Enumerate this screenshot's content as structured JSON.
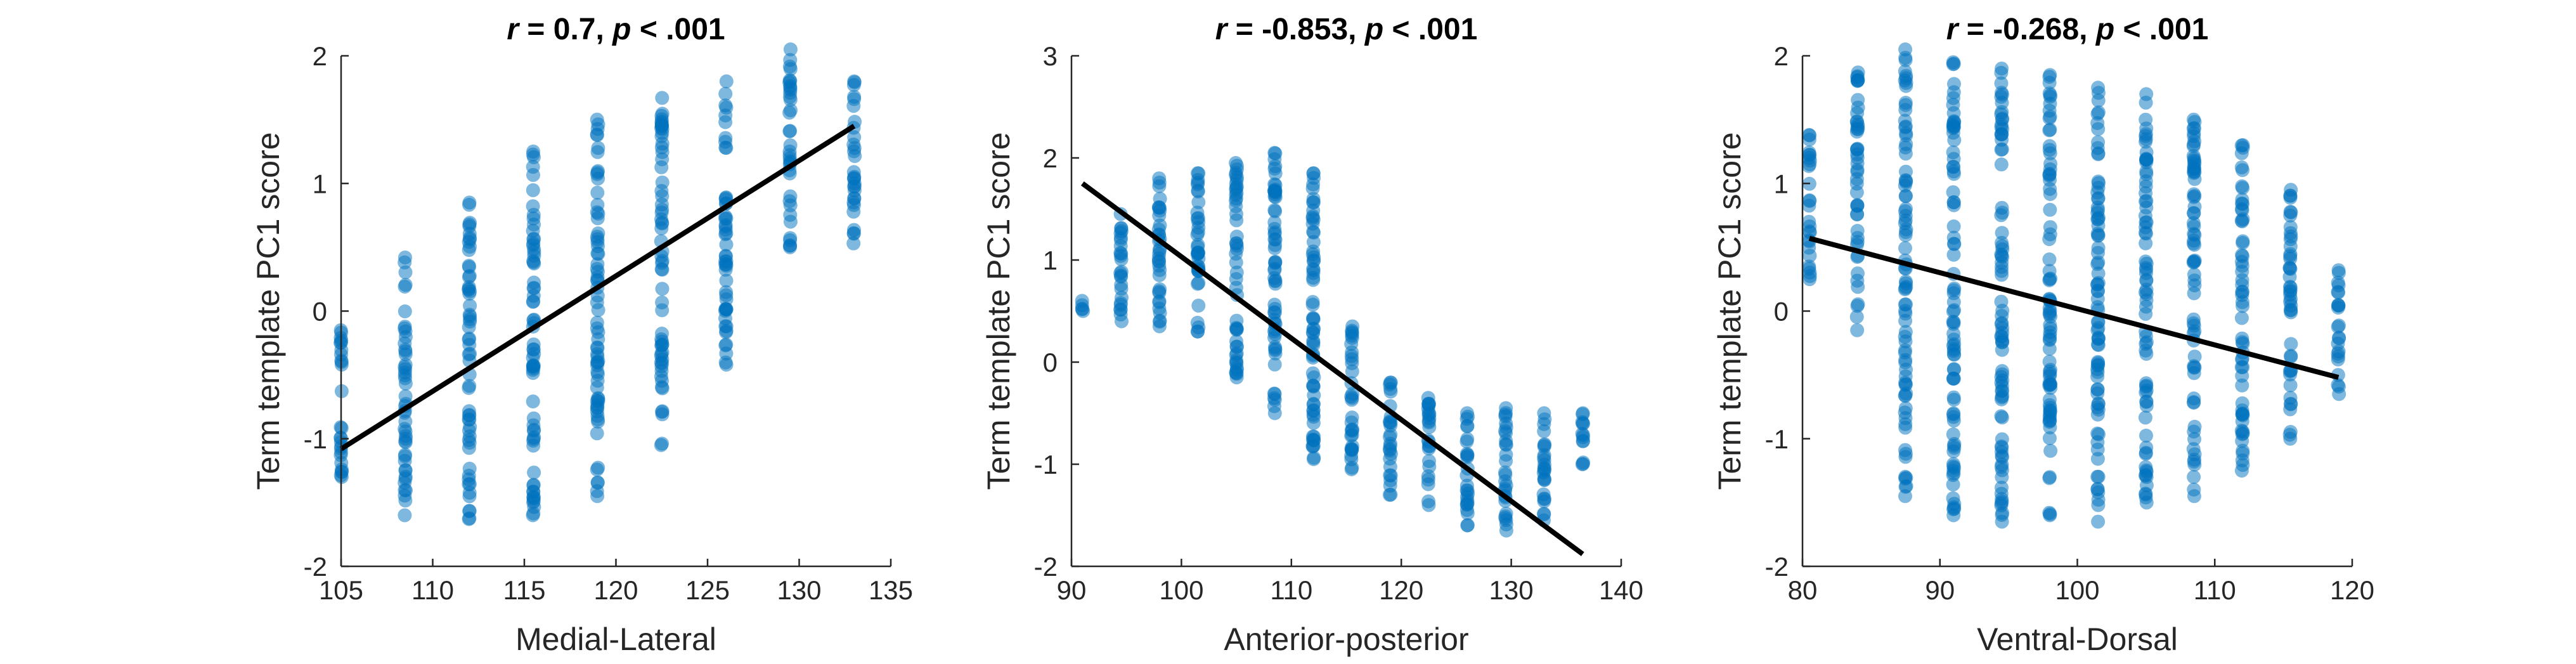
{
  "chart_data": [
    {
      "type": "scatter",
      "title_parts": [
        "r",
        " = 0.7, ",
        "p",
        " < .001"
      ],
      "xlabel": "Medial-Lateral",
      "ylabel": "Term template PC1 score",
      "xlim": [
        105,
        135
      ],
      "ylim": [
        -2,
        2
      ],
      "xticks": [
        "105",
        "110",
        "115",
        "120",
        "125",
        "130",
        "135"
      ],
      "yticks": [
        "-2",
        "-1",
        "0",
        "1",
        "2"
      ],
      "marker_color": "#0072BD",
      "grid": false,
      "fit_line": {
        "x": [
          105,
          133
        ],
        "y": [
          -1.08,
          1.45
        ]
      },
      "columns": [
        {
          "x": 105.0,
          "min": -1.3,
          "max": -0.15
        },
        {
          "x": 108.5,
          "min": -1.6,
          "max": 0.42
        },
        {
          "x": 112.0,
          "min": -1.63,
          "max": 0.85
        },
        {
          "x": 115.5,
          "min": -1.6,
          "max": 1.25
        },
        {
          "x": 119.0,
          "min": -1.45,
          "max": 1.5
        },
        {
          "x": 122.5,
          "min": -1.05,
          "max": 1.67
        },
        {
          "x": 126.0,
          "min": -0.42,
          "max": 1.8
        },
        {
          "x": 129.5,
          "min": 0.5,
          "max": 2.05
        },
        {
          "x": 133.0,
          "min": 0.53,
          "max": 1.8
        }
      ]
    },
    {
      "type": "scatter",
      "title_parts": [
        "r",
        " = -0.853, ",
        "p",
        " < .001"
      ],
      "xlabel": "Anterior-posterior",
      "ylabel": "Term template PC1 score",
      "xlim": [
        90,
        140
      ],
      "ylim": [
        -2,
        3
      ],
      "xticks": [
        "90",
        "100",
        "110",
        "120",
        "130",
        "140"
      ],
      "yticks": [
        "-2",
        "-1",
        "0",
        "1",
        "2",
        "3"
      ],
      "marker_color": "#0072BD",
      "grid": false,
      "fit_line": {
        "x": [
          91,
          136.5
        ],
        "y": [
          1.75,
          -1.88
        ]
      },
      "columns": [
        {
          "x": 91.0,
          "min": 0.5,
          "max": 0.6
        },
        {
          "x": 94.5,
          "min": 0.4,
          "max": 1.45
        },
        {
          "x": 98.0,
          "min": 0.35,
          "max": 1.8
        },
        {
          "x": 101.5,
          "min": 0.3,
          "max": 1.85
        },
        {
          "x": 105.0,
          "min": -0.15,
          "max": 1.95
        },
        {
          "x": 108.5,
          "min": -0.5,
          "max": 2.05
        },
        {
          "x": 112.0,
          "min": -0.95,
          "max": 1.85
        },
        {
          "x": 115.5,
          "min": -1.05,
          "max": 0.35
        },
        {
          "x": 119.0,
          "min": -1.3,
          "max": -0.2
        },
        {
          "x": 122.5,
          "min": -1.4,
          "max": -0.35
        },
        {
          "x": 126.0,
          "min": -1.6,
          "max": -0.5
        },
        {
          "x": 129.5,
          "min": -1.65,
          "max": -0.45
        },
        {
          "x": 133.0,
          "min": -1.55,
          "max": -0.5
        },
        {
          "x": 136.5,
          "min": -1.0,
          "max": -0.5
        }
      ]
    },
    {
      "type": "scatter",
      "title_parts": [
        "r",
        " = -0.268, ",
        "p",
        " < .001"
      ],
      "xlabel": "Ventral-Dorsal",
      "ylabel": "Term template PC1 score",
      "xlim": [
        80,
        120
      ],
      "ylim": [
        -2,
        2
      ],
      "xticks": [
        "80",
        "90",
        "100",
        "110",
        "120"
      ],
      "yticks": [
        "-2",
        "-1",
        "0",
        "1",
        "2"
      ],
      "marker_color": "#0072BD",
      "grid": false,
      "fit_line": {
        "x": [
          80.5,
          119
        ],
        "y": [
          0.57,
          -0.52
        ]
      },
      "columns": [
        {
          "x": 80.5,
          "min": 0.25,
          "max": 1.38
        },
        {
          "x": 84.0,
          "min": -0.15,
          "max": 1.87
        },
        {
          "x": 87.5,
          "min": -1.45,
          "max": 2.05
        },
        {
          "x": 91.0,
          "min": -1.6,
          "max": 1.95
        },
        {
          "x": 94.5,
          "min": -1.65,
          "max": 1.9
        },
        {
          "x": 98.0,
          "min": -1.6,
          "max": 1.85
        },
        {
          "x": 101.5,
          "min": -1.65,
          "max": 1.75
        },
        {
          "x": 105.0,
          "min": -1.5,
          "max": 1.7
        },
        {
          "x": 108.5,
          "min": -1.45,
          "max": 1.5
        },
        {
          "x": 112.0,
          "min": -1.25,
          "max": 1.3
        },
        {
          "x": 115.5,
          "min": -1.0,
          "max": 0.95
        },
        {
          "x": 119.0,
          "min": -0.65,
          "max": 0.32
        }
      ]
    }
  ]
}
